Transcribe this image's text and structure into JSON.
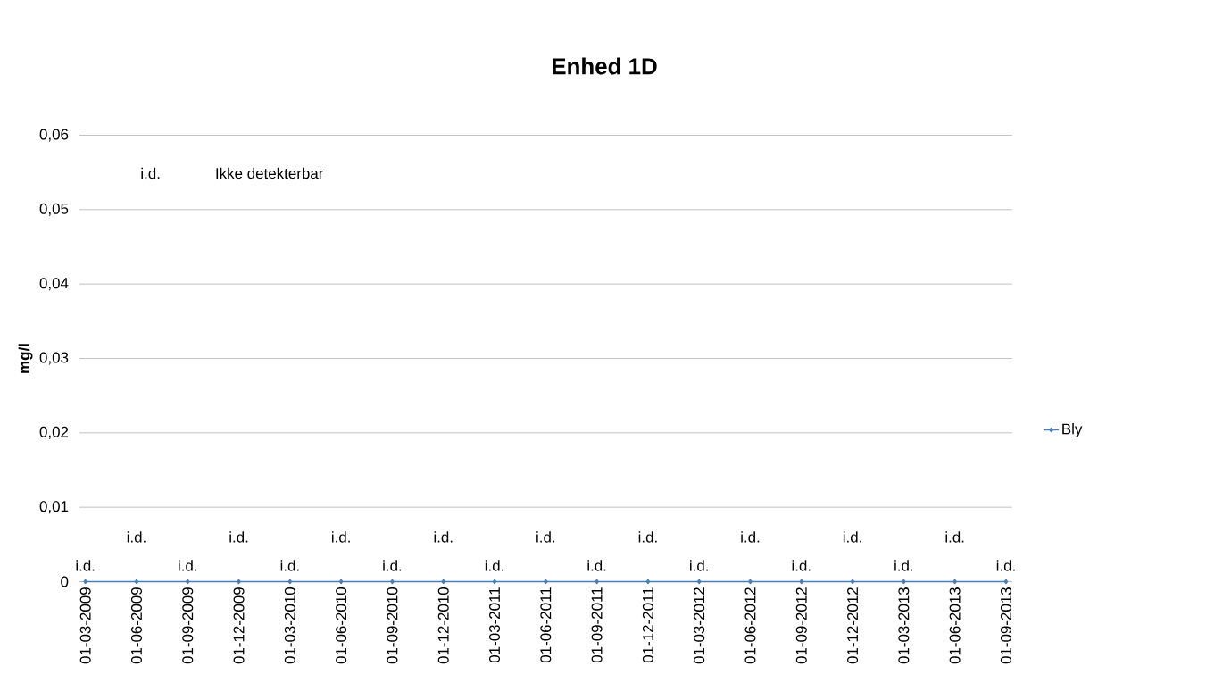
{
  "chart_data": {
    "type": "line",
    "title": "Enhed 1D",
    "ylabel": "mg/l",
    "categories": [
      "01-03-2009",
      "01-06-2009",
      "01-09-2009",
      "01-12-2009",
      "01-03-2010",
      "01-06-2010",
      "01-09-2010",
      "01-12-2010",
      "01-03-2011",
      "01-06-2011",
      "01-09-2011",
      "01-12-2011",
      "01-03-2012",
      "01-06-2012",
      "01-09-2012",
      "01-12-2012",
      "01-03-2013",
      "01-06-2013",
      "01-09-2013"
    ],
    "series": [
      {
        "name": "Bly",
        "color": "#4a7ebb",
        "values": [
          0,
          0,
          0,
          0,
          0,
          0,
          0,
          0,
          0,
          0,
          0,
          0,
          0,
          0,
          0,
          0,
          0,
          0,
          0
        ],
        "value_labels": [
          "i.d.",
          "i.d.",
          "i.d.",
          "i.d.",
          "i.d.",
          "i.d.",
          "i.d.",
          "i.d.",
          "i.d.",
          "i.d.",
          "i.d.",
          "i.d.",
          "i.d.",
          "i.d.",
          "i.d.",
          "i.d.",
          "i.d.",
          "i.d.",
          "i.d."
        ]
      }
    ],
    "ylim": [
      0,
      0.06
    ],
    "yticks": [
      {
        "value": 0,
        "label": "0"
      },
      {
        "value": 0.01,
        "label": "0,01"
      },
      {
        "value": 0.02,
        "label": "0,02"
      },
      {
        "value": 0.03,
        "label": "0,03"
      },
      {
        "value": 0.04,
        "label": "0,04"
      },
      {
        "value": 0.05,
        "label": "0,05"
      },
      {
        "value": 0.06,
        "label": "0,06"
      }
    ],
    "grid": "y",
    "legend": "right",
    "marker": "diamond",
    "line_style": "solid",
    "annotations": [
      "i.d.",
      "Ikke detekterbar"
    ]
  }
}
